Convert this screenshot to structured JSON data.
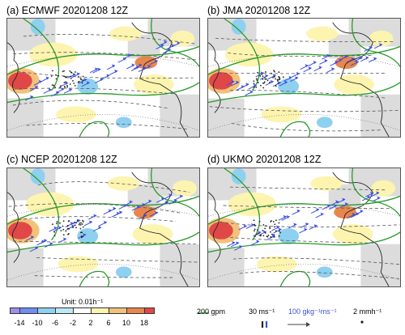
{
  "panels": [
    {
      "id": "a",
      "title": "(a) ECMWF 20201208 12Z"
    },
    {
      "id": "b",
      "title": "(b) JMA 20201208 12Z"
    },
    {
      "id": "c",
      "title": "(c) NCEP 20201208 12Z"
    },
    {
      "id": "d",
      "title": "(d) UKMO 20201208 12Z"
    }
  ],
  "colorbar": {
    "unit": "Unit: 0.01h⁻¹",
    "ticks": [
      "-14",
      "-10",
      "-6",
      "-2",
      "2",
      "6",
      "10",
      "18"
    ],
    "colors": [
      "#9d8ff0",
      "#6f8ef0",
      "#8fd0f0",
      "#bfe8f5",
      "#ffffff",
      "#fdf4b0",
      "#f3c27a",
      "#e8864e",
      "#e04848"
    ]
  },
  "legend": {
    "contour_label": "200 gpm",
    "wind_label": "30 ms⁻¹",
    "flux_label": "100 gkg⁻¹ms⁻¹",
    "precip_label": "2 mmh⁻¹",
    "contour_color": "#2a9a2a",
    "flux_color": "#3a4fe0"
  }
}
